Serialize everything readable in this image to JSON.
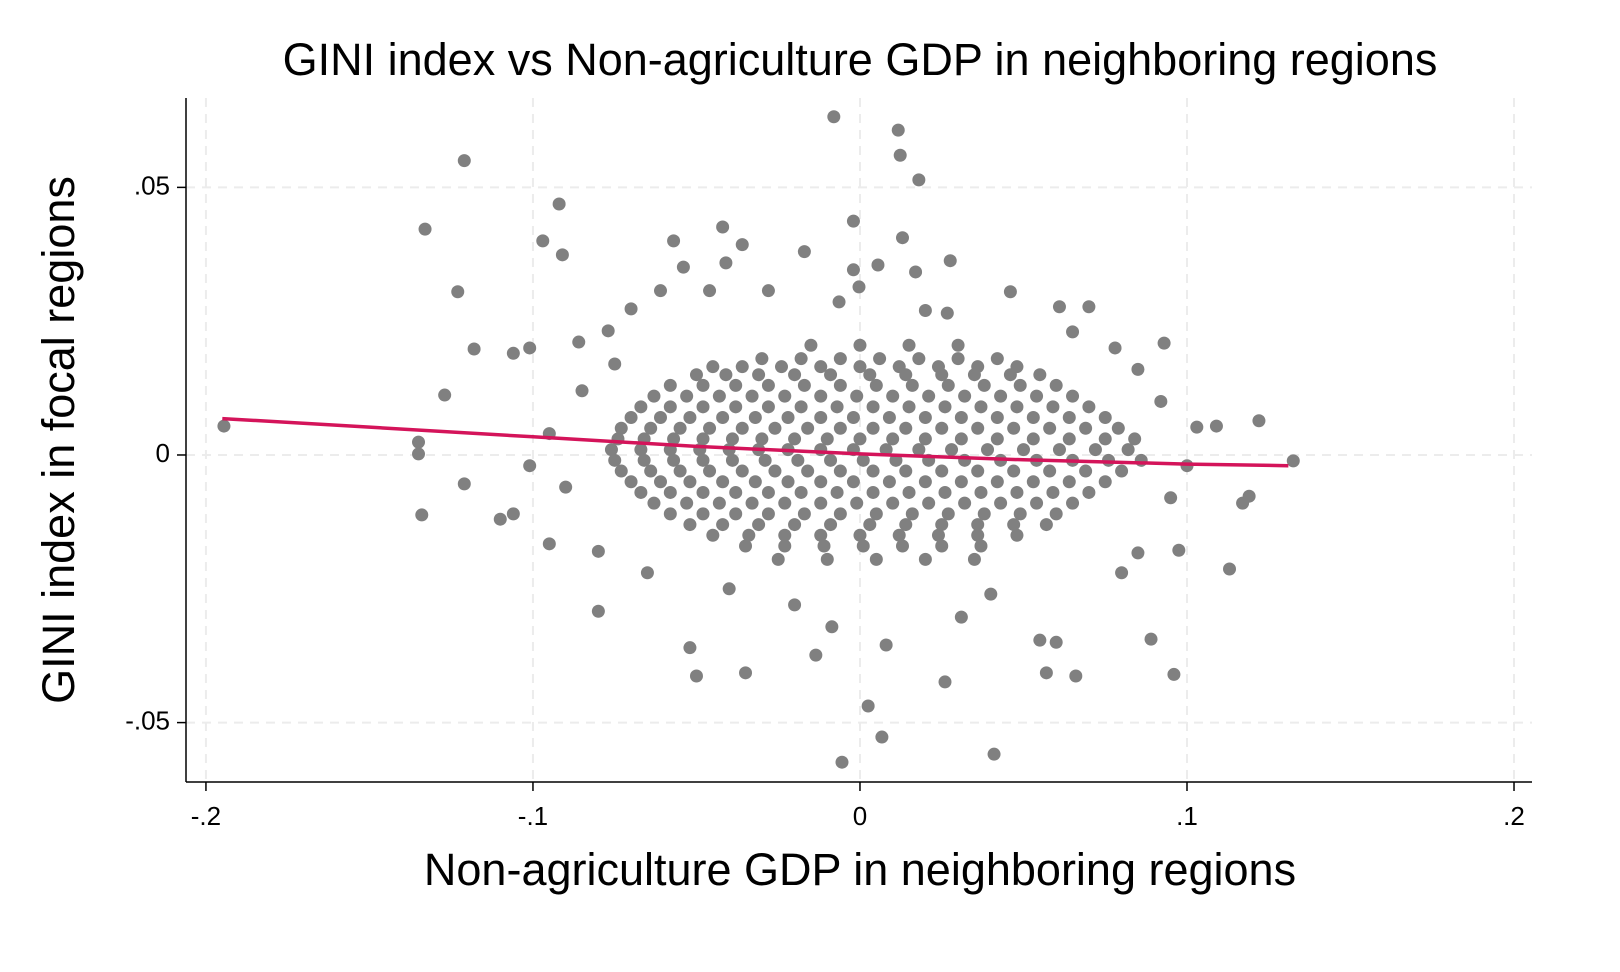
{
  "chart_data": {
    "type": "scatter",
    "title": "GINI index vs Non-agriculture GDP in neighboring regions",
    "x_label": "Non-agriculture GDP in neighboring regions",
    "y_label": "GINI index in focal regions",
    "xlim": [
      -0.2061,
      0.2055
    ],
    "ylim": [
      -0.0611,
      0.0667
    ],
    "xticks": [
      {
        "value": -0.2,
        "label": "-.2"
      },
      {
        "value": -0.1,
        "label": "-.1"
      },
      0,
      {
        "value": 0.1,
        "label": ".1"
      },
      {
        "value": 0.2,
        "label": ".2"
      }
    ],
    "yticks": [
      {
        "value": -0.05,
        "label": "-.05"
      },
      0,
      {
        "value": 0.05,
        "label": ".05"
      }
    ],
    "grid": true,
    "series": [
      {
        "type": "scatter",
        "color": "#808080",
        "x": [
          -0.008,
          0.0117,
          0.0123,
          -0.121,
          0.018,
          -0.092,
          -0.133,
          -0.002,
          -0.097,
          -0.042,
          -0.057,
          0.013,
          -0.036,
          -0.017,
          -0.091,
          -0.123,
          -0.054,
          -0.041,
          -0.002,
          0.0055,
          0.0276,
          0.017,
          0.046,
          0.061,
          0.093,
          0.122,
          0.1325,
          0.119,
          0.117,
          0.113,
          0.096,
          0.089,
          0.026,
          0.041,
          -0.0055,
          0.0067,
          0.0025,
          -0.035,
          -0.05,
          -0.052,
          -0.08,
          -0.134,
          -0.135,
          -0.135,
          -0.127,
          -0.118,
          -0.1945,
          -0.121,
          -0.11,
          -0.106,
          -0.101,
          -0.095,
          0.066,
          0.057,
          0.06,
          -0.0086,
          -0.0135,
          0.008,
          0.055,
          0.031,
          0.103,
          0.109,
          0.0975,
          0.085,
          0.078,
          0.07,
          0.0267,
          -0.106,
          -0.101,
          -0.086,
          -0.077,
          -0.07,
          -0.061,
          -0.046,
          -0.028,
          -0.0064,
          -0.0003,
          -0.085,
          -0.09,
          0.092,
          0.095,
          -0.08,
          0.085,
          -0.075,
          0.08,
          -0.065,
          0.065,
          -0.04,
          0.04,
          -0.02,
          0.02,
          -0.095,
          0.1,
          -0.015,
          0.0,
          0.015,
          0.03,
          -0.03,
          -0.018,
          -0.006,
          0.006,
          0.018,
          0.03,
          0.042,
          -0.045,
          -0.036,
          -0.024,
          -0.012,
          0,
          0.012,
          0.024,
          0.036,
          0.048,
          -0.05,
          -0.041,
          -0.031,
          -0.02,
          -0.009,
          0.003,
          0.014,
          0.025,
          0.035,
          0.046,
          0.055,
          -0.058,
          -0.048,
          -0.038,
          -0.028,
          -0.017,
          -0.006,
          0.005,
          0.016,
          0.027,
          0.038,
          0.049,
          0.06,
          -0.063,
          -0.053,
          -0.043,
          -0.033,
          -0.023,
          -0.012,
          -0.001,
          0.01,
          0.021,
          0.032,
          0.043,
          0.054,
          0.065,
          -0.067,
          -0.058,
          -0.048,
          -0.038,
          -0.028,
          -0.018,
          -0.007,
          0.004,
          0.015,
          0.026,
          0.037,
          0.048,
          0.059,
          0.07,
          -0.07,
          -0.061,
          -0.052,
          -0.042,
          -0.032,
          -0.022,
          -0.012,
          -0.002,
          0.009,
          0.02,
          0.031,
          0.042,
          0.053,
          0.064,
          0.075,
          -0.073,
          -0.064,
          -0.055,
          -0.046,
          -0.036,
          -0.026,
          -0.016,
          -0.006,
          0.004,
          0.014,
          0.025,
          0.036,
          0.047,
          0.058,
          0.069,
          0.079,
          -0.074,
          -0.066,
          -0.057,
          -0.048,
          -0.039,
          -0.03,
          -0.02,
          -0.01,
          0,
          0.01,
          0.02,
          0.031,
          0.042,
          0.053,
          0.064,
          0.075,
          0.084,
          -0.076,
          -0.067,
          -0.058,
          -0.049,
          -0.04,
          -0.031,
          -0.022,
          -0.012,
          -0.002,
          0.008,
          0.018,
          0.028,
          0.039,
          0.05,
          0.061,
          0.072,
          0.082,
          -0.075,
          -0.066,
          -0.057,
          -0.048,
          -0.039,
          -0.029,
          -0.019,
          -0.009,
          0.001,
          0.011,
          0.021,
          0.032,
          0.043,
          0.054,
          0.065,
          0.076,
          0.086,
          -0.073,
          -0.064,
          -0.055,
          -0.046,
          -0.036,
          -0.026,
          -0.016,
          -0.006,
          0.004,
          0.014,
          0.025,
          0.036,
          0.047,
          0.058,
          0.069,
          0.08,
          -0.07,
          -0.061,
          -0.052,
          -0.042,
          -0.032,
          -0.022,
          -0.012,
          -0.002,
          0.009,
          0.02,
          0.031,
          0.042,
          0.053,
          0.064,
          0.075,
          -0.067,
          -0.058,
          -0.048,
          -0.038,
          -0.028,
          -0.018,
          -0.007,
          0.004,
          0.015,
          0.026,
          0.037,
          0.048,
          0.059,
          0.07,
          -0.063,
          -0.053,
          -0.043,
          -0.033,
          -0.023,
          -0.012,
          -0.001,
          0.01,
          0.021,
          0.032,
          0.043,
          0.054,
          0.065,
          -0.058,
          -0.048,
          -0.038,
          -0.028,
          -0.017,
          -0.006,
          0.005,
          0.016,
          0.027,
          0.038,
          0.049,
          0.06,
          -0.052,
          -0.042,
          -0.031,
          -0.02,
          -0.009,
          0.003,
          0.014,
          0.025,
          0.036,
          0.047,
          0.057,
          -0.045,
          -0.034,
          -0.023,
          -0.012,
          0,
          0.012,
          0.024,
          0.036,
          0.048,
          -0.035,
          -0.023,
          -0.011,
          0.001,
          0.013,
          0.025,
          0.037,
          -0.025,
          -0.01,
          0.005,
          0.02,
          0.035
        ],
        "values": [
          0.0632,
          0.0607,
          0.056,
          0.055,
          0.0514,
          0.0469,
          0.0422,
          0.0437,
          0.04,
          0.0426,
          0.04,
          0.0406,
          0.0393,
          0.038,
          0.0374,
          0.0305,
          0.0351,
          0.0359,
          0.0346,
          0.0355,
          0.0363,
          0.0342,
          0.0305,
          0.0277,
          0.0209,
          0.0064,
          -0.0011,
          -0.0077,
          -0.009,
          -0.0213,
          -0.041,
          -0.0344,
          -0.0424,
          -0.0559,
          -0.0574,
          -0.0527,
          -0.0469,
          -0.0407,
          -0.0413,
          -0.036,
          -0.0292,
          -0.0112,
          0.0002,
          0.0024,
          0.0112,
          0.0198,
          0.0054,
          -0.0054,
          -0.012,
          -0.011,
          -0.002,
          -0.0166,
          -0.0413,
          -0.0407,
          -0.035,
          -0.0321,
          -0.0374,
          -0.0355,
          -0.0346,
          -0.0303,
          0.0052,
          0.0054,
          -0.0178,
          -0.0183,
          0.02,
          0.0277,
          0.0265,
          0.019,
          0.02,
          0.0211,
          0.0232,
          0.0273,
          0.0307,
          0.0307,
          0.0307,
          0.0286,
          0.0314,
          0.012,
          -0.006,
          0.01,
          -0.008,
          -0.018,
          0.016,
          0.017,
          -0.022,
          -0.022,
          0.023,
          -0.025,
          -0.026,
          -0.028,
          0.027,
          0.004,
          -0.002,
          0.0205,
          0.0205,
          0.0205,
          0.0205,
          0.018,
          0.018,
          0.018,
          0.018,
          0.018,
          0.018,
          0.018,
          0.0165,
          0.0165,
          0.0165,
          0.0165,
          0.0165,
          0.0165,
          0.0165,
          0.0165,
          0.0165,
          0.015,
          0.015,
          0.015,
          0.015,
          0.015,
          0.015,
          0.015,
          0.015,
          0.015,
          0.015,
          0.015,
          0.013,
          0.013,
          0.013,
          0.013,
          0.013,
          0.013,
          0.013,
          0.013,
          0.013,
          0.013,
          0.013,
          0.013,
          0.011,
          0.011,
          0.011,
          0.011,
          0.011,
          0.011,
          0.011,
          0.011,
          0.011,
          0.011,
          0.011,
          0.011,
          0.011,
          0.009,
          0.009,
          0.009,
          0.009,
          0.009,
          0.009,
          0.009,
          0.009,
          0.009,
          0.009,
          0.009,
          0.009,
          0.009,
          0.009,
          0.007,
          0.007,
          0.007,
          0.007,
          0.007,
          0.007,
          0.007,
          0.007,
          0.007,
          0.007,
          0.007,
          0.007,
          0.007,
          0.007,
          0.007,
          0.005,
          0.005,
          0.005,
          0.005,
          0.005,
          0.005,
          0.005,
          0.005,
          0.005,
          0.005,
          0.005,
          0.005,
          0.005,
          0.005,
          0.005,
          0.005,
          0.003,
          0.003,
          0.003,
          0.003,
          0.003,
          0.003,
          0.003,
          0.003,
          0.003,
          0.003,
          0.003,
          0.003,
          0.003,
          0.003,
          0.003,
          0.003,
          0.003,
          0.001,
          0.001,
          0.001,
          0.001,
          0.001,
          0.001,
          0.001,
          0.001,
          0.001,
          0.001,
          0.001,
          0.001,
          0.001,
          0.001,
          0.001,
          0.001,
          0.001,
          -0.001,
          -0.001,
          -0.001,
          -0.001,
          -0.001,
          -0.001,
          -0.001,
          -0.001,
          -0.001,
          -0.001,
          -0.001,
          -0.001,
          -0.001,
          -0.001,
          -0.001,
          -0.001,
          -0.001,
          -0.003,
          -0.003,
          -0.003,
          -0.003,
          -0.003,
          -0.003,
          -0.003,
          -0.003,
          -0.003,
          -0.003,
          -0.003,
          -0.003,
          -0.003,
          -0.003,
          -0.003,
          -0.003,
          -0.005,
          -0.005,
          -0.005,
          -0.005,
          -0.005,
          -0.005,
          -0.005,
          -0.005,
          -0.005,
          -0.005,
          -0.005,
          -0.005,
          -0.005,
          -0.005,
          -0.005,
          -0.007,
          -0.007,
          -0.007,
          -0.007,
          -0.007,
          -0.007,
          -0.007,
          -0.007,
          -0.007,
          -0.007,
          -0.007,
          -0.007,
          -0.007,
          -0.007,
          -0.009,
          -0.009,
          -0.009,
          -0.009,
          -0.009,
          -0.009,
          -0.009,
          -0.009,
          -0.009,
          -0.009,
          -0.009,
          -0.009,
          -0.009,
          -0.011,
          -0.011,
          -0.011,
          -0.011,
          -0.011,
          -0.011,
          -0.011,
          -0.011,
          -0.011,
          -0.011,
          -0.011,
          -0.011,
          -0.013,
          -0.013,
          -0.013,
          -0.013,
          -0.013,
          -0.013,
          -0.013,
          -0.013,
          -0.013,
          -0.013,
          -0.013,
          -0.015,
          -0.015,
          -0.015,
          -0.015,
          -0.015,
          -0.015,
          -0.015,
          -0.015,
          -0.015,
          -0.017,
          -0.017,
          -0.017,
          -0.017,
          -0.017,
          -0.017,
          -0.017,
          -0.0195,
          -0.0195,
          -0.0195,
          -0.0195,
          -0.0195
        ]
      },
      {
        "type": "line",
        "color": "#d4145a",
        "x": [
          -0.195,
          -0.15,
          -0.1,
          -0.05,
          0,
          0.05,
          0.1,
          0.131
        ],
        "values": [
          0.0068,
          0.0052,
          0.0034,
          0.0016,
          0.0002,
          -0.0009,
          -0.0017,
          -0.002
        ]
      }
    ]
  }
}
